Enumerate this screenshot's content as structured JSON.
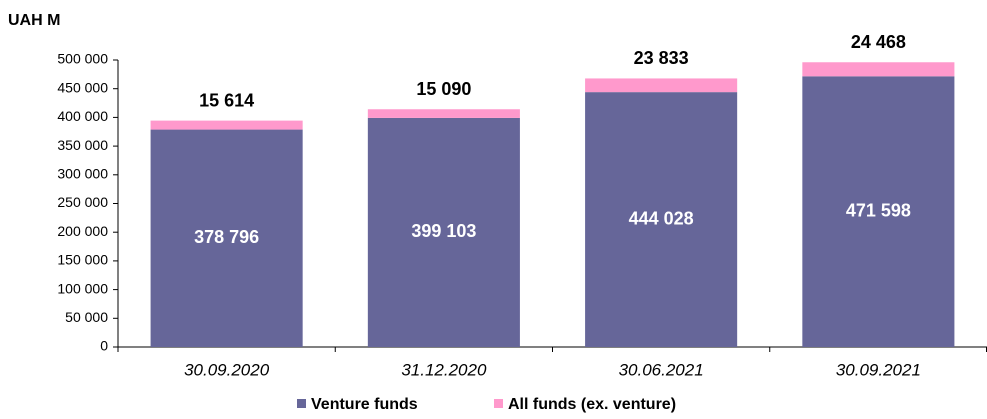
{
  "chart_data": {
    "type": "stacked_bar",
    "y_label": "UAH M",
    "categories": [
      "30.09.2020",
      "31.12.2020",
      "30.06.2021",
      "30.09.2021"
    ],
    "series": [
      {
        "name": "Venture funds",
        "color": "#666699",
        "values": [
          378796,
          399103,
          444028,
          471598
        ],
        "value_labels": [
          "378 796",
          "399 103",
          "444 028",
          "471 598"
        ]
      },
      {
        "name": "All funds (ex. venture)",
        "color": "#ff99cc",
        "values": [
          15614,
          15090,
          23833,
          24468
        ],
        "value_labels": [
          "15 614",
          "15 090",
          "23 833",
          "24 468"
        ]
      }
    ],
    "ylim": [
      0,
      500000
    ],
    "yticks": [
      0,
      {
        "value": 50000,
        "label": "50 000"
      },
      {
        "value": 100000,
        "label": "100 000"
      },
      {
        "value": 150000,
        "label": "150 000"
      },
      {
        "value": 200000,
        "label": "200 000"
      },
      {
        "value": 250000,
        "label": "250 000"
      },
      {
        "value": 300000,
        "label": "300 000"
      },
      {
        "value": 350000,
        "label": "350 000"
      },
      {
        "value": 400000,
        "label": "400 000"
      },
      {
        "value": 450000,
        "label": "450 000"
      },
      {
        "value": 500000,
        "label": "500 000"
      }
    ],
    "grid": false,
    "legend": "bottom"
  }
}
